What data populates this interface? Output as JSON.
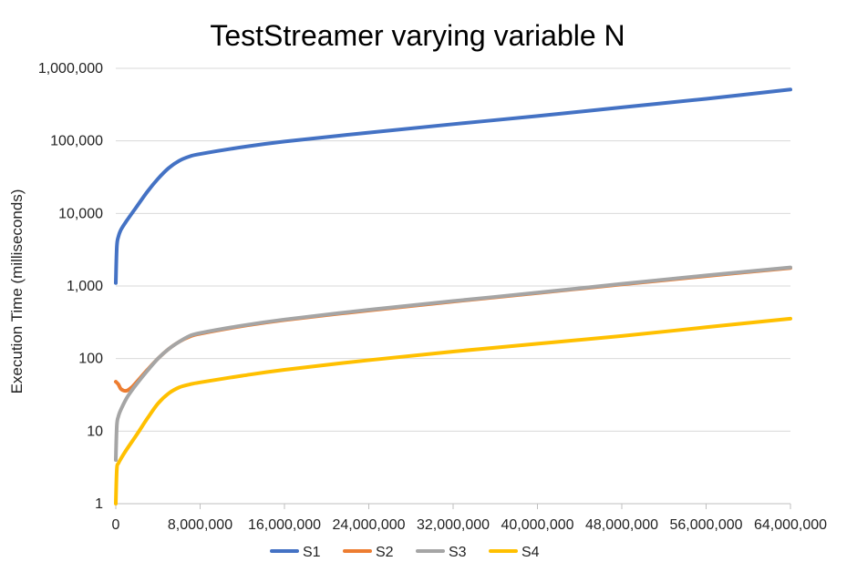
{
  "chart_data": {
    "type": "line",
    "title": "TestStreamer varying variable N",
    "xlabel": "",
    "ylabel": "Execution Time (milliseconds)",
    "xlim": [
      0,
      64000000
    ],
    "ylim": [
      1,
      1000000
    ],
    "yscale": "log",
    "grid": true,
    "legend_position": "bottom",
    "x_tick_labels": [
      "0",
      "8,000,000",
      "16,000,000",
      "24,000,000",
      "32,000,000",
      "40,000,000",
      "48,000,000",
      "56,000,000",
      "64,000,000"
    ],
    "x_tick_values": [
      0,
      8000000,
      16000000,
      24000000,
      32000000,
      40000000,
      48000000,
      56000000,
      64000000
    ],
    "y_tick_labels": [
      "1",
      "10",
      "100",
      "1,000",
      "10,000",
      "100,000",
      "1,000,000"
    ],
    "y_tick_values": [
      1,
      10,
      100,
      1000,
      10000,
      100000,
      1000000
    ],
    "series": [
      {
        "name": "S1",
        "color": "#4472C4",
        "x": [
          0,
          100000,
          250000,
          500000,
          1000000,
          2000000,
          3000000,
          4000000,
          5000000,
          6000000,
          7000000,
          8000000,
          12000000,
          16000000,
          24000000,
          32000000,
          40000000,
          48000000,
          56000000,
          64000000
        ],
        "y": [
          1100,
          3500,
          4800,
          6000,
          7800,
          12500,
          20000,
          30000,
          42000,
          53000,
          61000,
          66000,
          82000,
          98000,
          130000,
          170000,
          220000,
          290000,
          380000,
          510000
        ]
      },
      {
        "name": "S2",
        "color": "#ED7D31",
        "x": [
          0,
          250000,
          500000,
          1000000,
          1500000,
          2000000,
          3000000,
          4000000,
          5000000,
          6000000,
          7000000,
          8000000,
          12000000,
          16000000,
          24000000,
          32000000,
          40000000,
          48000000,
          56000000,
          64000000
        ],
        "y": [
          48,
          44,
          38,
          36,
          40,
          48,
          70,
          100,
          135,
          170,
          200,
          220,
          280,
          340,
          460,
          610,
          800,
          1050,
          1370,
          1770
        ]
      },
      {
        "name": "S3",
        "color": "#A5A5A5",
        "x": [
          0,
          100000,
          250000,
          500000,
          1000000,
          1500000,
          2000000,
          3000000,
          4000000,
          5000000,
          6000000,
          7000000,
          8000000,
          12000000,
          16000000,
          24000000,
          32000000,
          40000000,
          48000000,
          56000000,
          64000000
        ],
        "y": [
          4,
          12,
          16,
          20,
          28,
          36,
          45,
          68,
          100,
          135,
          170,
          205,
          225,
          285,
          345,
          470,
          620,
          810,
          1070,
          1400,
          1800
        ]
      },
      {
        "name": "S4",
        "color": "#FFC000",
        "x": [
          0,
          100000,
          250000,
          500000,
          1000000,
          2000000,
          3000000,
          4000000,
          5000000,
          6000000,
          7000000,
          8000000,
          12000000,
          16000000,
          24000000,
          32000000,
          40000000,
          48000000,
          56000000,
          64000000
        ],
        "y": [
          1,
          3,
          3.6,
          4.2,
          5.5,
          9,
          15,
          24,
          33,
          40,
          44,
          47,
          58,
          70,
          95,
          125,
          160,
          205,
          270,
          355
        ]
      }
    ]
  }
}
